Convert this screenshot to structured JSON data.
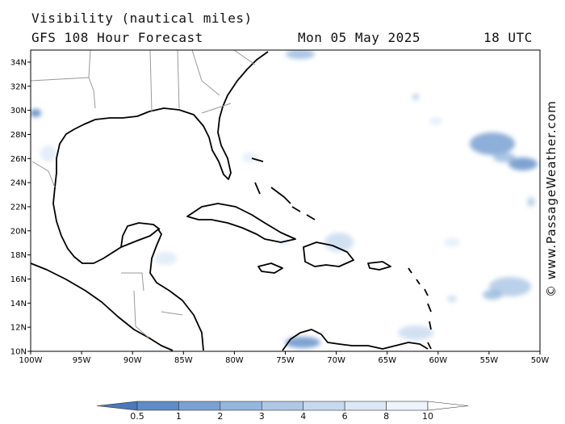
{
  "header": {
    "variable": "Visibility (nautical miles)",
    "model": "GFS 108 Hour Forecast",
    "date": "Mon 05 May 2025",
    "time": "18 UTC"
  },
  "watermark": "© www.PassageWeather.com",
  "map": {
    "lon_range": [
      -100,
      -50
    ],
    "lat_range": [
      10,
      35
    ],
    "lon_labels": [
      "100W",
      "95W",
      "90W",
      "85W",
      "80W",
      "75W",
      "70W",
      "65W",
      "60W",
      "55W",
      "50W"
    ],
    "lat_labels": [
      "10N",
      "12N",
      "14N",
      "16N",
      "18N",
      "20N",
      "22N",
      "24N",
      "26N",
      "28N",
      "30N",
      "32N",
      "34N"
    ]
  },
  "colorbar": {
    "labels": [
      "0.5",
      "1",
      "2",
      "3",
      "4",
      "6",
      "8",
      "10"
    ],
    "colors": [
      "#4a78b8",
      "#5f8cc6",
      "#7aa1d2",
      "#95b6dd",
      "#afc8e6",
      "#c7d9ef",
      "#dde8f6",
      "#eef4fb",
      "#ffffff"
    ]
  }
}
